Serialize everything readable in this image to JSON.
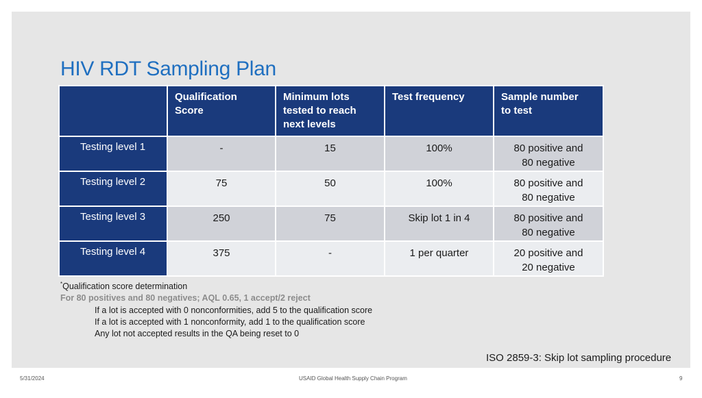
{
  "title": "HIV RDT Sampling Plan",
  "table": {
    "headers": [
      "",
      "Qualification Score",
      "Minimum lots tested to reach next levels",
      "Test frequency",
      "Sample number to test"
    ],
    "header_lines": {
      "qualification": [
        "Qualification",
        "Score"
      ],
      "minimum": [
        "Minimum lots",
        "tested to reach",
        "next levels"
      ],
      "frequency": [
        "Test frequency"
      ],
      "sample": [
        "Sample number",
        "to test"
      ]
    },
    "rows": [
      {
        "level": "Testing level 1",
        "score": "-",
        "lots": "15",
        "frequency": "100%",
        "sample_line1": "80 positive and",
        "sample_line2": "80 negative"
      },
      {
        "level": "Testing level 2",
        "score": "75",
        "lots": "50",
        "frequency": "100%",
        "sample_line1": "80 positive and",
        "sample_line2": "80 negative"
      },
      {
        "level": "Testing level 3",
        "score": "250",
        "lots": "75",
        "frequency": "Skip lot 1 in 4",
        "sample_line1": "80 positive and",
        "sample_line2": "80 negative"
      },
      {
        "level": "Testing level 4",
        "score": "375",
        "lots": "-",
        "frequency": "1 per quarter",
        "sample_line1": "20 positive and",
        "sample_line2": "20 negative"
      }
    ]
  },
  "notes": {
    "marker": "*",
    "heading": "Qualification score determination",
    "aql": "For 80 positives and 80 negatives; AQL 0.65, 1 accept/2 reject",
    "rules": [
      "If a lot is accepted with 0 nonconformities, add 5 to the qualification score",
      "If a lot is accepted with 1 nonconformity, add 1 to the qualification score",
      "Any lot not accepted results in the QA being reset to 0"
    ]
  },
  "iso_note": "ISO 2859-3: Skip lot sampling procedure",
  "footer": {
    "date": "5/31/2024",
    "program": "USAID Global Health Supply Chain Program",
    "page": "9"
  },
  "colors": {
    "title": "#1f6fc0",
    "header_bg": "#1a3a7c",
    "row_dark": "#d0d2d8",
    "row_light": "#ebedf0"
  }
}
